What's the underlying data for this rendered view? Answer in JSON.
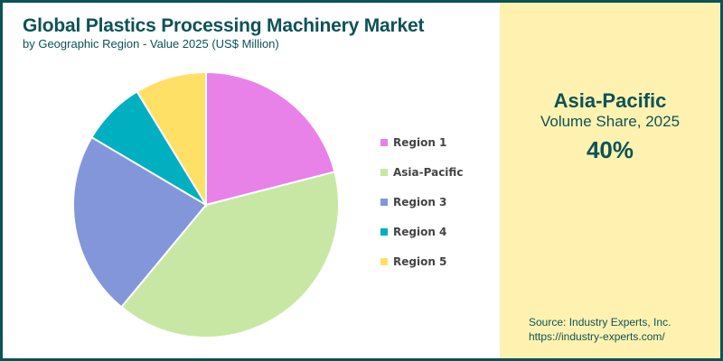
{
  "header": {
    "title": "Global Plastics Processing Machinery Market",
    "subtitle": "by Geographic Region - Value 2025 (US$ Million)"
  },
  "highlight": {
    "region": "Asia-Pacific",
    "label": "Volume Share, 2025",
    "value": "40%"
  },
  "source": {
    "line1": "Source: Industry Experts, Inc.",
    "line2": "https://industry-experts.com/"
  },
  "colors": {
    "brand": "#0d5257",
    "panel": "#fff2b0"
  },
  "chart_data": {
    "type": "pie",
    "title": "Global Plastics Processing Machinery Market",
    "subtitle": "by Geographic Region - Value 2025 (US$ Million)",
    "categories": [
      "Region 1",
      "Asia-Pacific",
      "Region 3",
      "Region 4",
      "Region 5"
    ],
    "values": [
      21,
      40,
      22.5,
      7.8,
      8.7
    ],
    "colors": [
      "#e882e8",
      "#c9e7a4",
      "#8396d9",
      "#00b0c0",
      "#ffe066"
    ],
    "start_angle": "12 o'clock, clockwise",
    "legend_position": "right",
    "legend": [
      "Region 1",
      "Asia-Pacific",
      "Region 3",
      "Region 4",
      "Region 5"
    ]
  }
}
